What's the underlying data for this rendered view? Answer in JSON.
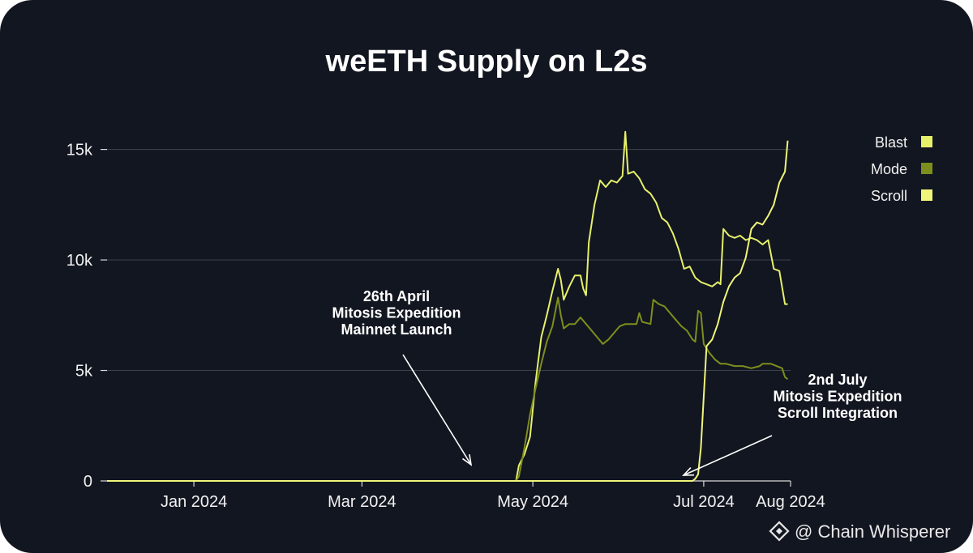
{
  "chart_data": {
    "type": "line",
    "title": "weETH Supply on L2s",
    "xlabel": "",
    "ylabel": "",
    "ylim": [
      0,
      17000
    ],
    "yticks": [
      {
        "value": 0,
        "label": "0"
      },
      {
        "value": 5000,
        "label": "5k"
      },
      {
        "value": 10000,
        "label": "10k"
      },
      {
        "value": 15000,
        "label": "15k"
      }
    ],
    "xticks": [
      {
        "date": "2024-01-01",
        "label": "Jan 2024"
      },
      {
        "date": "2024-03-01",
        "label": "Mar 2024"
      },
      {
        "date": "2024-05-01",
        "label": "May 2024"
      },
      {
        "date": "2024-07-01",
        "label": "Jul 2024"
      },
      {
        "date": "2024-08-01",
        "label": "Aug 2024"
      }
    ],
    "xlim": [
      "2023-12-01",
      "2024-08-01"
    ],
    "grid": true,
    "legend_position": "top-right",
    "series": [
      {
        "name": "Blast",
        "color": "#e6f06a",
        "points": [
          [
            "2023-12-01",
            0
          ],
          [
            "2024-04-25",
            0
          ],
          [
            "2024-04-26",
            700
          ],
          [
            "2024-04-28",
            1200
          ],
          [
            "2024-04-30",
            2000
          ],
          [
            "2024-05-02",
            4500
          ],
          [
            "2024-05-04",
            6500
          ],
          [
            "2024-05-06",
            7500
          ],
          [
            "2024-05-08",
            8600
          ],
          [
            "2024-05-10",
            9600
          ],
          [
            "2024-05-11",
            9100
          ],
          [
            "2024-05-12",
            8200
          ],
          [
            "2024-05-14",
            8800
          ],
          [
            "2024-05-16",
            9300
          ],
          [
            "2024-05-18",
            9300
          ],
          [
            "2024-05-19",
            8700
          ],
          [
            "2024-05-20",
            8400
          ],
          [
            "2024-05-21",
            10800
          ],
          [
            "2024-05-23",
            12500
          ],
          [
            "2024-05-25",
            13600
          ],
          [
            "2024-05-27",
            13300
          ],
          [
            "2024-05-29",
            13600
          ],
          [
            "2024-05-31",
            13500
          ],
          [
            "2024-06-02",
            13800
          ],
          [
            "2024-06-03",
            15800
          ],
          [
            "2024-06-04",
            13900
          ],
          [
            "2024-06-06",
            14000
          ],
          [
            "2024-06-08",
            13700
          ],
          [
            "2024-06-10",
            13200
          ],
          [
            "2024-06-12",
            13000
          ],
          [
            "2024-06-14",
            12600
          ],
          [
            "2024-06-16",
            11900
          ],
          [
            "2024-06-18",
            11700
          ],
          [
            "2024-06-20",
            11200
          ],
          [
            "2024-06-22",
            10500
          ],
          [
            "2024-06-24",
            9600
          ],
          [
            "2024-06-26",
            9700
          ],
          [
            "2024-06-28",
            9200
          ],
          [
            "2024-06-30",
            9000
          ],
          [
            "2024-07-02",
            8900
          ],
          [
            "2024-07-04",
            8800
          ],
          [
            "2024-07-06",
            9000
          ],
          [
            "2024-07-07",
            8900
          ],
          [
            "2024-07-08",
            11400
          ],
          [
            "2024-07-10",
            11100
          ],
          [
            "2024-07-12",
            11000
          ],
          [
            "2024-07-14",
            11100
          ],
          [
            "2024-07-16",
            10900
          ],
          [
            "2024-07-18",
            11000
          ],
          [
            "2024-07-20",
            10900
          ],
          [
            "2024-07-22",
            10700
          ],
          [
            "2024-07-24",
            10900
          ],
          [
            "2024-07-26",
            9600
          ],
          [
            "2024-07-28",
            9500
          ],
          [
            "2024-07-30",
            8000
          ],
          [
            "2024-07-31",
            8000
          ]
        ]
      },
      {
        "name": "Mode",
        "color": "#7d8e1e",
        "points": [
          [
            "2023-12-01",
            0
          ],
          [
            "2024-04-25",
            0
          ],
          [
            "2024-04-26",
            200
          ],
          [
            "2024-04-28",
            1500
          ],
          [
            "2024-04-30",
            3000
          ],
          [
            "2024-05-02",
            4200
          ],
          [
            "2024-05-04",
            5300
          ],
          [
            "2024-05-06",
            6300
          ],
          [
            "2024-05-08",
            7000
          ],
          [
            "2024-05-10",
            8300
          ],
          [
            "2024-05-11",
            7500
          ],
          [
            "2024-05-12",
            6900
          ],
          [
            "2024-05-14",
            7100
          ],
          [
            "2024-05-16",
            7100
          ],
          [
            "2024-05-18",
            7400
          ],
          [
            "2024-05-20",
            7100
          ],
          [
            "2024-05-22",
            6800
          ],
          [
            "2024-05-24",
            6500
          ],
          [
            "2024-05-26",
            6200
          ],
          [
            "2024-05-28",
            6400
          ],
          [
            "2024-05-30",
            6700
          ],
          [
            "2024-06-01",
            7000
          ],
          [
            "2024-06-03",
            7100
          ],
          [
            "2024-06-05",
            7100
          ],
          [
            "2024-06-07",
            7100
          ],
          [
            "2024-06-08",
            7600
          ],
          [
            "2024-06-09",
            7200
          ],
          [
            "2024-06-12",
            7100
          ],
          [
            "2024-06-13",
            8200
          ],
          [
            "2024-06-15",
            8000
          ],
          [
            "2024-06-17",
            7900
          ],
          [
            "2024-06-19",
            7600
          ],
          [
            "2024-06-21",
            7300
          ],
          [
            "2024-06-23",
            7000
          ],
          [
            "2024-06-25",
            6800
          ],
          [
            "2024-06-27",
            6400
          ],
          [
            "2024-06-28",
            6300
          ],
          [
            "2024-06-29",
            7700
          ],
          [
            "2024-06-30",
            7600
          ],
          [
            "2024-07-01",
            6200
          ],
          [
            "2024-07-03",
            5800
          ],
          [
            "2024-07-05",
            5500
          ],
          [
            "2024-07-07",
            5300
          ],
          [
            "2024-07-09",
            5300
          ],
          [
            "2024-07-12",
            5200
          ],
          [
            "2024-07-15",
            5200
          ],
          [
            "2024-07-18",
            5100
          ],
          [
            "2024-07-21",
            5200
          ],
          [
            "2024-07-22",
            5300
          ],
          [
            "2024-07-25",
            5300
          ],
          [
            "2024-07-27",
            5200
          ],
          [
            "2024-07-29",
            5100
          ],
          [
            "2024-07-30",
            4700
          ],
          [
            "2024-07-31",
            4600
          ]
        ]
      },
      {
        "name": "Scroll",
        "color": "#f0f57a",
        "points": [
          [
            "2023-12-01",
            0
          ],
          [
            "2024-06-27",
            0
          ],
          [
            "2024-06-28",
            100
          ],
          [
            "2024-06-29",
            300
          ],
          [
            "2024-06-30",
            1500
          ],
          [
            "2024-07-01",
            3800
          ],
          [
            "2024-07-02",
            6100
          ],
          [
            "2024-07-04",
            6400
          ],
          [
            "2024-07-06",
            7100
          ],
          [
            "2024-07-08",
            8100
          ],
          [
            "2024-07-10",
            8800
          ],
          [
            "2024-07-12",
            9200
          ],
          [
            "2024-07-14",
            9400
          ],
          [
            "2024-07-16",
            10100
          ],
          [
            "2024-07-18",
            11400
          ],
          [
            "2024-07-20",
            11700
          ],
          [
            "2024-07-22",
            11600
          ],
          [
            "2024-07-24",
            12000
          ],
          [
            "2024-07-26",
            12500
          ],
          [
            "2024-07-28",
            13500
          ],
          [
            "2024-07-30",
            14000
          ],
          [
            "2024-07-31",
            15400
          ]
        ]
      }
    ],
    "annotations": [
      {
        "lines": [
          "26th April",
          "Mitosis Expedition",
          "Mainnet Launch"
        ],
        "target_date": "2024-04-26",
        "target_value": 0
      },
      {
        "lines": [
          "2nd July",
          "Mitosis Expedition",
          "Scroll Integration"
        ],
        "target_date": "2024-07-02",
        "target_value": 0
      }
    ]
  },
  "watermark": {
    "text": "@ Chain Whisperer",
    "icon": "binance-diamond-icon"
  },
  "colors": {
    "background": "#121620",
    "grid": "#3d424c",
    "axis": "#d9d9d9"
  }
}
